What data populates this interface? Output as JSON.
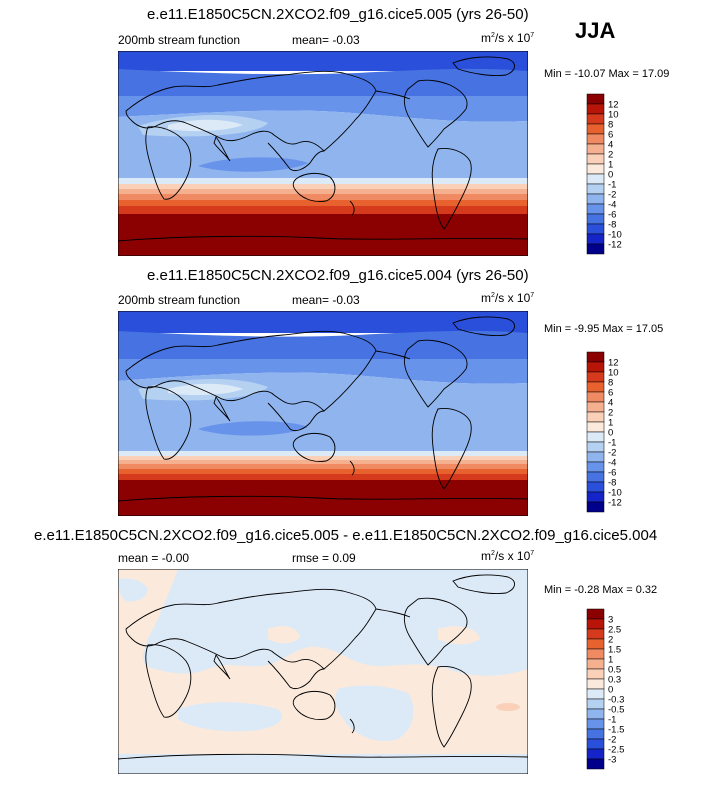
{
  "season": "JJA",
  "panels": [
    {
      "title": "e.e11.E1850C5CN.2XCO2.f09_g16.cice5.005 (yrs 26-50)",
      "left_label": "200mb stream function",
      "mean_label": "mean=  -0.03",
      "units_base": "m",
      "units_sup1": "2",
      "units_mid": "/s x 10",
      "units_sup2": "7",
      "minmax": "Min = -10.07 Max =  17.09",
      "colorbar_labels": [
        "12",
        "10",
        "8",
        "6",
        "4",
        "2",
        "1",
        "0",
        "-1",
        "-2",
        "-4",
        "-6",
        "-8",
        "-10",
        "-12"
      ],
      "colorbar_colors": [
        "#8b0000",
        "#b81407",
        "#d53a1d",
        "#e7622f",
        "#ef8a62",
        "#f5b08f",
        "#fbd0b8",
        "#fbeadc",
        "#dce9f7",
        "#b5d1f2",
        "#8fb4ee",
        "#6893ea",
        "#4672e2",
        "#2a4fda",
        "#1524c8",
        "#00008b"
      ]
    },
    {
      "title": "e.e11.E1850C5CN.2XCO2.f09_g16.cice5.004 (yrs 26-50)",
      "left_label": "200mb stream function",
      "mean_label": "mean=  -0.03",
      "units_base": "m",
      "units_sup1": "2",
      "units_mid": "/s x 10",
      "units_sup2": "7",
      "minmax": "Min =  -9.95 Max =  17.05",
      "colorbar_labels": [
        "12",
        "10",
        "8",
        "6",
        "4",
        "2",
        "1",
        "0",
        "-1",
        "-2",
        "-4",
        "-6",
        "-8",
        "-10",
        "-12"
      ],
      "colorbar_colors": [
        "#8b0000",
        "#b81407",
        "#d53a1d",
        "#e7622f",
        "#ef8a62",
        "#f5b08f",
        "#fbd0b8",
        "#fbeadc",
        "#dce9f7",
        "#b5d1f2",
        "#8fb4ee",
        "#6893ea",
        "#4672e2",
        "#2a4fda",
        "#1524c8",
        "#00008b"
      ]
    },
    {
      "title": "e.e11.E1850C5CN.2XCO2.f09_g16.cice5.005 - e.e11.E1850C5CN.2XCO2.f09_g16.cice5.004",
      "left_label": "mean = -0.00",
      "mean_label": "rmse =  0.09",
      "units_base": "m",
      "units_sup1": "2",
      "units_mid": "/s x 10",
      "units_sup2": "7",
      "minmax": "Min =  -0.28 Max =   0.32",
      "colorbar_labels": [
        "3",
        "2.5",
        "2",
        "1.5",
        "1",
        "0.5",
        "0.3",
        "0",
        "-0.3",
        "-0.5",
        "-1",
        "-1.5",
        "-2",
        "-2.5",
        "-3"
      ],
      "colorbar_colors": [
        "#8b0000",
        "#b81407",
        "#d53a1d",
        "#e7622f",
        "#ef8a62",
        "#f5b08f",
        "#fbd0b8",
        "#fbeadc",
        "#dce9f7",
        "#b5d1f2",
        "#8fb4ee",
        "#6893ea",
        "#4672e2",
        "#2a4fda",
        "#1524c8",
        "#00008b"
      ]
    }
  ]
}
